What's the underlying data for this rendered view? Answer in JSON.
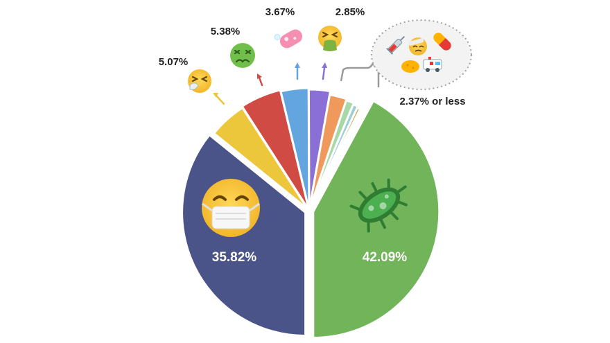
{
  "chart_data": {
    "type": "pie",
    "categories": [
      "bacteria",
      "mask",
      "sneeze",
      "nauseated",
      "pill",
      "vomit",
      "other-1",
      "other-2",
      "other-3",
      "other-4",
      "other-5",
      "other-6"
    ],
    "values": [
      42.09,
      35.82,
      5.07,
      5.38,
      3.67,
      2.85,
      2.37,
      1.1,
      0.7,
      0.45,
      0.3,
      0.2
    ],
    "labels": [
      "42.09%",
      "35.82%",
      "5.07%",
      "5.38%",
      "3.67%",
      "2.85%"
    ],
    "other_label": "2.37% or less",
    "colors": [
      "#72b45a",
      "#4a5488",
      "#ecc73c",
      "#d04b44",
      "#63a6df",
      "#8a70d6",
      "#ef9a5c",
      "#a9d8a6",
      "#9bcfd6",
      "#c9b060",
      "#5c6c8c",
      "#8f3f3f"
    ],
    "icons": [
      "microbe-icon",
      "face-with-medical-mask-icon",
      "sneezing-face-icon",
      "nauseated-face-icon",
      "pill-icon",
      "vomiting-face-icon",
      "syringe-icon",
      "bandage-face-icon",
      "ambulance-icon"
    ]
  }
}
